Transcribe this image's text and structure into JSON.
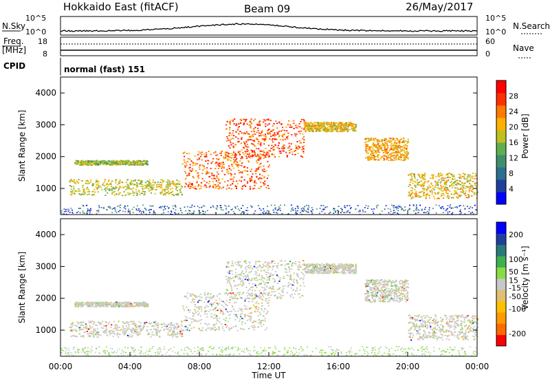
{
  "header": {
    "title": "Hokkaido East (fitACF)",
    "beam": "Beam 09",
    "date": "26/May/2017"
  },
  "side_labels": {
    "nsky": "N.Sky",
    "nsearch": "N.Search",
    "freq": "Freq.",
    "freq_unit": "[MHz]",
    "nave": "Nave",
    "cpid": "CPID",
    "cpid_value": "normal (fast) 151"
  },
  "noise_panel": {
    "left_ticks": [
      "10^5",
      "10^0"
    ],
    "right_ticks": [
      "10^5",
      "10^0"
    ]
  },
  "freq_panel": {
    "left_ticks": [
      "18",
      "8"
    ],
    "right_ticks": [
      "60",
      "0"
    ]
  },
  "colors": {
    "power": [
      "#0000ff",
      "#1f3f9f",
      "#2e6e8e",
      "#3f8f6f",
      "#5fae4f",
      "#bfc020",
      "#ffb000",
      "#ff7a00",
      "#ff3000",
      "#ff0000"
    ],
    "velocity": [
      "#ff0000",
      "#ff6a00",
      "#ff9a00",
      "#ffc000",
      "#e0c070",
      "#c8c8c8",
      "#88dd44",
      "#3fb04f",
      "#2a7a7a",
      "#1f3f9f",
      "#0000ff"
    ]
  },
  "chart_data": [
    {
      "type": "heatmap",
      "name": "power",
      "ylabel": "Slant Range [km]",
      "xlabel": "Time UT",
      "x_ticks": [
        "00:00",
        "04:00",
        "08:00",
        "12:00",
        "16:00",
        "20:00",
        "00:00"
      ],
      "xlim": [
        0,
        24
      ],
      "y_ticks": [
        1000,
        2000,
        3000,
        4000
      ],
      "ylim": [
        180,
        4500
      ],
      "colorbar": {
        "label": "Power [dB]",
        "ticks": [
          4,
          8,
          12,
          16,
          20,
          24,
          28
        ],
        "range": [
          0,
          32
        ]
      },
      "echo_bands": [
        {
          "t": [
            0.5,
            7
          ],
          "r": [
            800,
            1300
          ],
          "level": 18
        },
        {
          "t": [
            0.8,
            5
          ],
          "r": [
            1750,
            1900
          ],
          "level": 16
        },
        {
          "t": [
            7,
            12
          ],
          "r": [
            1000,
            2200
          ],
          "level": 26
        },
        {
          "t": [
            9.5,
            14
          ],
          "r": [
            2000,
            3200
          ],
          "level": 27
        },
        {
          "t": [
            14,
            17
          ],
          "r": [
            2800,
            3100
          ],
          "level": 20
        },
        {
          "t": [
            17.5,
            20
          ],
          "r": [
            1900,
            2600
          ],
          "level": 22
        },
        {
          "t": [
            20,
            24
          ],
          "r": [
            700,
            1500
          ],
          "level": 20
        }
      ]
    },
    {
      "type": "heatmap",
      "name": "velocity",
      "ylabel": "Slant Range [km]",
      "xlabel": "Time UT",
      "x_ticks": [
        "00:00",
        "04:00",
        "08:00",
        "12:00",
        "16:00",
        "20:00",
        "00:00"
      ],
      "xlim": [
        0,
        24
      ],
      "y_ticks": [
        1000,
        2000,
        3000,
        4000
      ],
      "ylim": [
        180,
        4500
      ],
      "colorbar": {
        "label": "Velocity [m s⁻¹]",
        "ticks": [
          -200,
          -100,
          -50,
          -15,
          15,
          50,
          100,
          200
        ],
        "range": [
          -250,
          250
        ]
      }
    }
  ],
  "time_label": "Time UT"
}
